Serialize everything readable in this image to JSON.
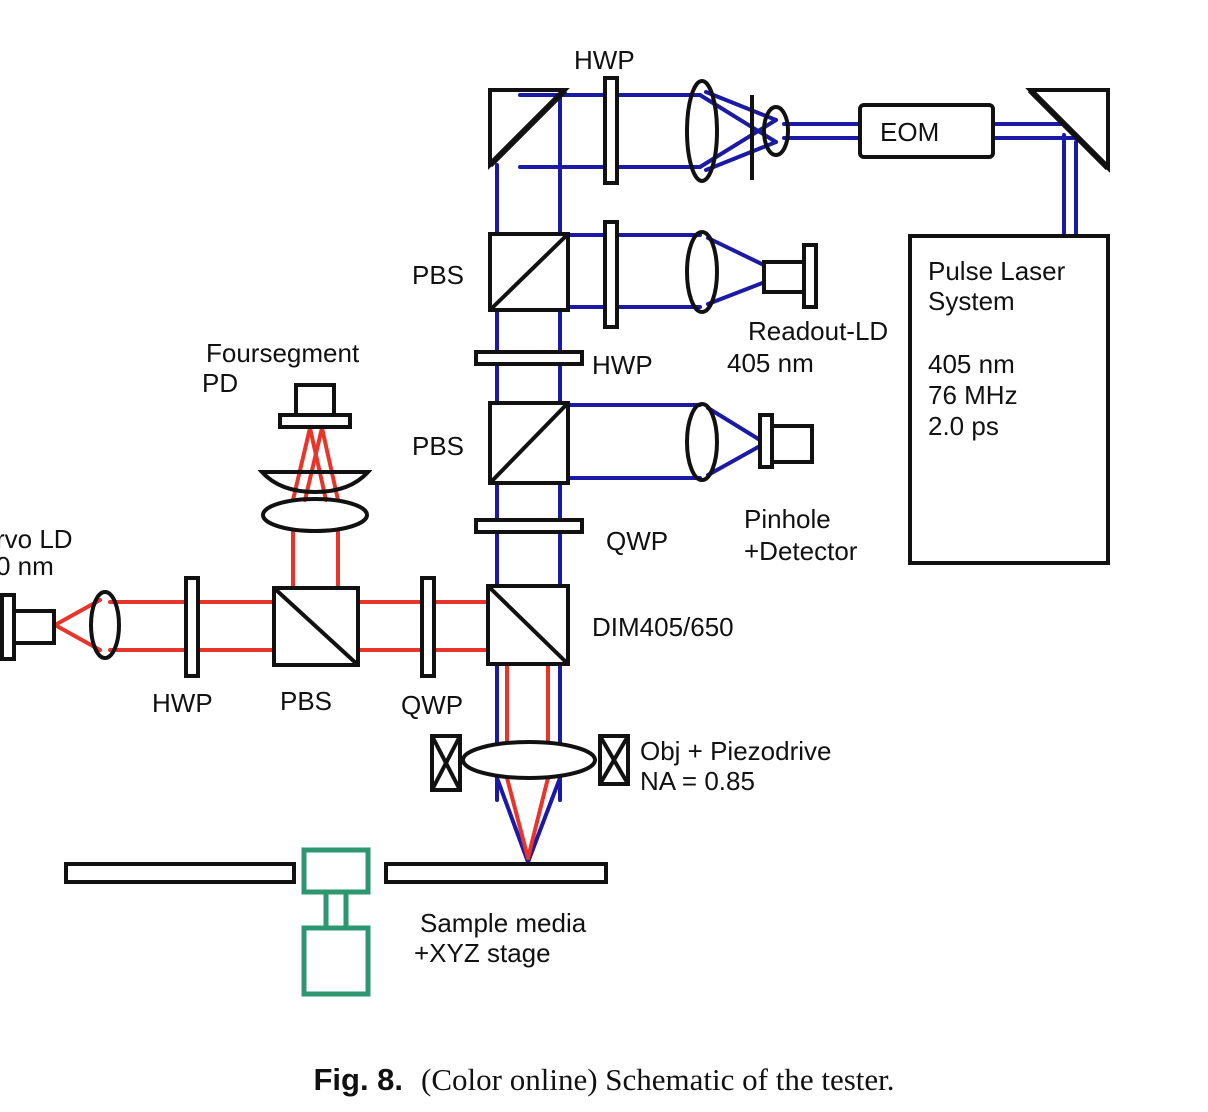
{
  "colors": {
    "blue_beam": "#1a1aa6",
    "red_beam": "#e8352c",
    "stage": "#2e9670",
    "outline": "#111111"
  },
  "labels": {
    "hwp_top": "HWP",
    "eom": "EOM",
    "pbs_upper": "PBS",
    "hwp_mid": "HWP",
    "readout_ld_line1": "Readout-LD",
    "readout_ld_line2": "405 nm",
    "pulse_laser_line1": "Pulse  Laser",
    "pulse_laser_line2": "System",
    "pulse_laser_spec1": "405 nm",
    "pulse_laser_spec2": "76 MHz",
    "pulse_laser_spec3": "2.0 ps",
    "foursegment_line1": "Foursegment",
    "foursegment_line2": "PD",
    "pbs_lower": "PBS",
    "qwp_mid": "QWP",
    "pinhole_line1": "Pinhole",
    "pinhole_line2": "+Detector",
    "servo_ld_line1": "rvo LD",
    "servo_ld_line2": "0 nm",
    "dim": "DIM405/650",
    "hwp_bottom": "HWP",
    "pbs_bottom": "PBS",
    "qwp_bottom": "QWP",
    "obj_line1": "Obj + Piezodrive",
    "obj_line2": "NA = 0.85",
    "sample_line1": "Sample media",
    "sample_line2": "+XYZ stage"
  },
  "caption": {
    "fig_label": "Fig. 8.",
    "text": "(Color online) Schematic of the tester."
  }
}
